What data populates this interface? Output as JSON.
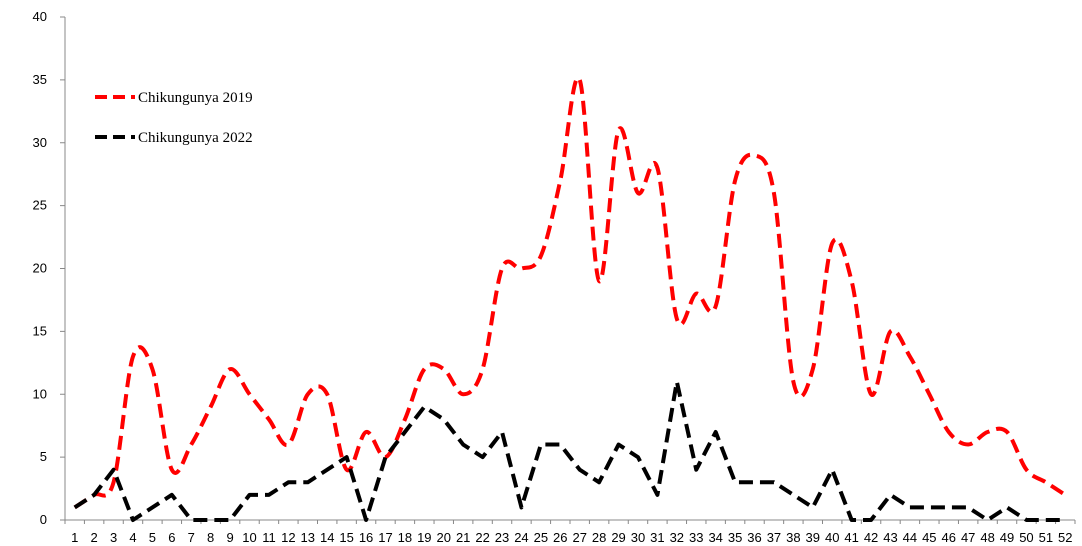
{
  "chart_data": {
    "type": "line",
    "title": "",
    "xlabel": "",
    "ylabel": "",
    "ylim": [
      0,
      40
    ],
    "yticks": [
      0,
      5,
      10,
      15,
      20,
      25,
      30,
      35,
      40
    ],
    "categories": [
      "1",
      "2",
      "3",
      "4",
      "5",
      "6",
      "7",
      "8",
      "9",
      "10",
      "11",
      "12",
      "13",
      "14",
      "15",
      "16",
      "17",
      "18",
      "19",
      "20",
      "21",
      "22",
      "23",
      "24",
      "25",
      "26",
      "27",
      "28",
      "29",
      "30",
      "31",
      "32",
      "33",
      "34",
      "35",
      "36",
      "37",
      "38",
      "39",
      "40",
      "41",
      "42",
      "43",
      "44",
      "45",
      "46",
      "47",
      "48",
      "49",
      "50",
      "51",
      "52"
    ],
    "grid": false,
    "legend_position": "top-left",
    "series": [
      {
        "name": "Chikungunya 2019",
        "color": "#ff0000",
        "values": [
          1,
          2,
          3,
          13,
          12,
          4,
          6,
          9,
          12,
          10,
          8,
          6,
          10,
          10,
          4,
          7,
          5,
          8,
          12,
          12,
          10,
          12,
          20,
          20,
          21,
          27,
          35,
          19,
          31,
          26,
          28,
          16,
          18,
          17,
          27,
          29,
          26,
          11,
          12,
          22,
          19,
          10,
          15,
          13,
          10,
          7,
          6,
          7,
          7,
          4,
          3,
          2
        ]
      },
      {
        "name": "Chikungunya 2022",
        "color": "#000000",
        "values": [
          1,
          2,
          4,
          0,
          1,
          2,
          0,
          0,
          0,
          2,
          2,
          3,
          3,
          4,
          5,
          0,
          5,
          7,
          9,
          8,
          6,
          5,
          7,
          1,
          6,
          6,
          4,
          3,
          6,
          5,
          2,
          11,
          4,
          7,
          3,
          3,
          3,
          2,
          1,
          4,
          0,
          0,
          2,
          1,
          1,
          1,
          1,
          0,
          1,
          0,
          0,
          0
        ]
      }
    ]
  }
}
